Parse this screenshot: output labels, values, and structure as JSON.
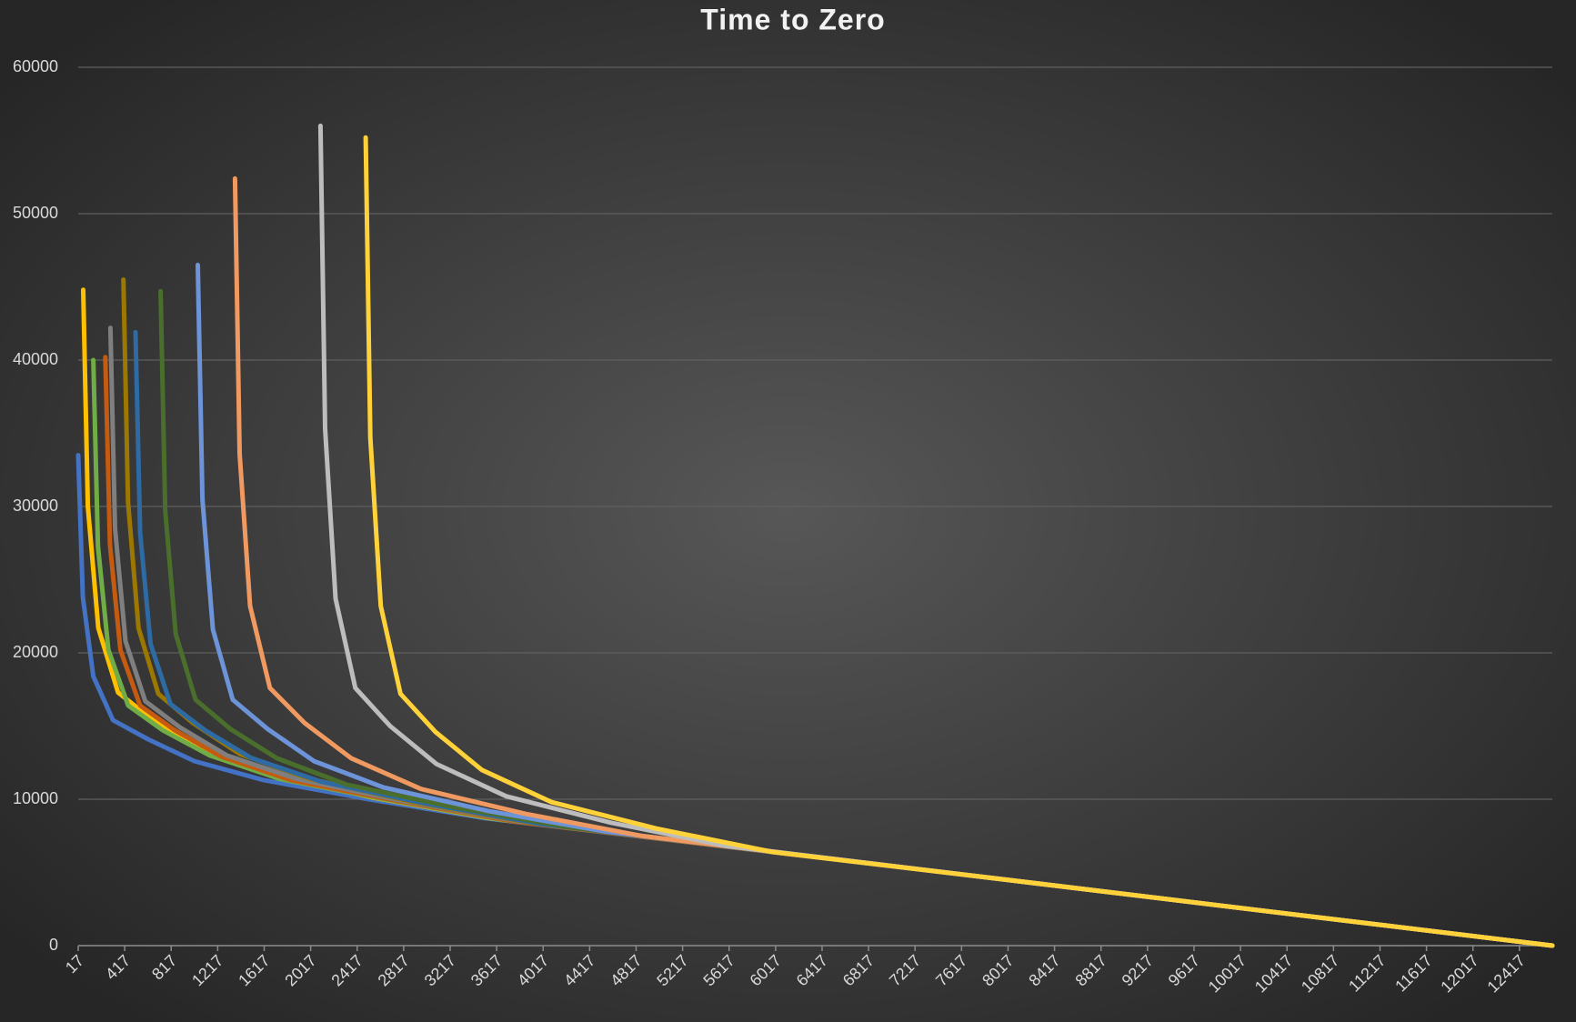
{
  "chart_data": {
    "type": "line",
    "title": "Time to Zero",
    "xlim": [
      17,
      12700
    ],
    "ylim": [
      0,
      60000
    ],
    "xticks": [
      17,
      417,
      817,
      1217,
      1617,
      2017,
      2417,
      2817,
      3217,
      3617,
      4017,
      4417,
      4817,
      5217,
      5617,
      6017,
      6417,
      6817,
      7217,
      7617,
      8017,
      8417,
      8817,
      9217,
      9617,
      10017,
      10417,
      10817,
      11217,
      11617,
      12017,
      12417
    ],
    "yticks": [
      0,
      10000,
      20000,
      30000,
      40000,
      50000,
      60000
    ],
    "grid": true,
    "series": [
      {
        "color": "#4472c4",
        "x": [
          17,
          57,
          147,
          317,
          617,
          1017,
          1617,
          2517,
          3517,
          8000,
          12700
        ],
        "values": [
          33500,
          23800,
          18400,
          15400,
          14100,
          12600,
          11300,
          10000,
          8700,
          4500,
          0
        ]
      },
      {
        "color": "#ffc000",
        "x": [
          60,
          100,
          190,
          360,
          660,
          1060,
          1660,
          2560,
          3560,
          8000,
          12700
        ],
        "values": [
          44800,
          30000,
          21700,
          17300,
          15400,
          13400,
          11700,
          10100,
          8700,
          4500,
          0
        ]
      },
      {
        "color": "#70ad47",
        "x": [
          147,
          187,
          277,
          447,
          747,
          1147,
          1747,
          2647,
          3647,
          8000,
          12700
        ],
        "values": [
          40000,
          27300,
          20200,
          16400,
          14700,
          13000,
          11400,
          10000,
          8600,
          4500,
          0
        ]
      },
      {
        "color": "#c55a11",
        "x": [
          250,
          290,
          380,
          550,
          850,
          1250,
          1850,
          2750,
          3750,
          8000,
          12700
        ],
        "values": [
          40200,
          27400,
          20200,
          16400,
          14700,
          12900,
          11300,
          9900,
          8500,
          4500,
          0
        ]
      },
      {
        "color": "#7f7f7f",
        "x": [
          294,
          334,
          424,
          594,
          894,
          1294,
          1894,
          2794,
          3794,
          8000,
          12700
        ],
        "values": [
          42200,
          28500,
          20800,
          16700,
          14900,
          13000,
          11400,
          9900,
          8500,
          4500,
          0
        ]
      },
      {
        "color": "#9c7800",
        "x": [
          406,
          446,
          536,
          706,
          1006,
          1406,
          2006,
          2906,
          3906,
          8000,
          12700
        ],
        "values": [
          45500,
          30300,
          21700,
          17200,
          15200,
          13100,
          11400,
          9800,
          8400,
          4500,
          0
        ]
      },
      {
        "color": "#2e6aa3",
        "x": [
          510,
          550,
          640,
          810,
          1110,
          1510,
          2110,
          3010,
          4010,
          8000,
          12700
        ],
        "values": [
          41900,
          28200,
          20600,
          16500,
          14700,
          12800,
          11200,
          9700,
          8300,
          4500,
          0
        ]
      },
      {
        "color": "#4a6f2c",
        "x": [
          726,
          766,
          856,
          1026,
          1326,
          1726,
          2326,
          3226,
          4226,
          8000,
          12700
        ],
        "values": [
          44700,
          29700,
          21300,
          16800,
          14800,
          12800,
          11000,
          9500,
          8100,
          4500,
          0
        ]
      },
      {
        "color": "#6d93d8",
        "x": [
          1046,
          1086,
          1176,
          1346,
          1646,
          2046,
          2646,
          3546,
          4546,
          8000,
          12700
        ],
        "values": [
          46500,
          30500,
          21600,
          16800,
          14800,
          12600,
          10800,
          9200,
          7800,
          4500,
          0
        ]
      },
      {
        "color": "#f09a62",
        "x": [
          1366,
          1406,
          1496,
          1666,
          1966,
          2366,
          2966,
          3866,
          4866,
          8000,
          12700
        ],
        "values": [
          52400,
          33600,
          23200,
          17600,
          15200,
          12800,
          10700,
          9000,
          7500,
          4500,
          0
        ]
      },
      {
        "color": "#bdbdbd",
        "x": [
          2101,
          2141,
          2231,
          2401,
          2701,
          3101,
          3701,
          4601,
          5601,
          8000,
          12700
        ],
        "values": [
          56000,
          35300,
          23700,
          17600,
          15000,
          12400,
          10200,
          8400,
          6800,
          4500,
          0
        ]
      },
      {
        "color": "#ffd23a",
        "x": [
          2490,
          2530,
          2620,
          2790,
          3090,
          3490,
          4090,
          4990,
          5990,
          8000,
          12700
        ],
        "values": [
          55200,
          34700,
          23200,
          17200,
          14600,
          12000,
          9800,
          8000,
          6400,
          4500,
          0
        ]
      }
    ]
  }
}
